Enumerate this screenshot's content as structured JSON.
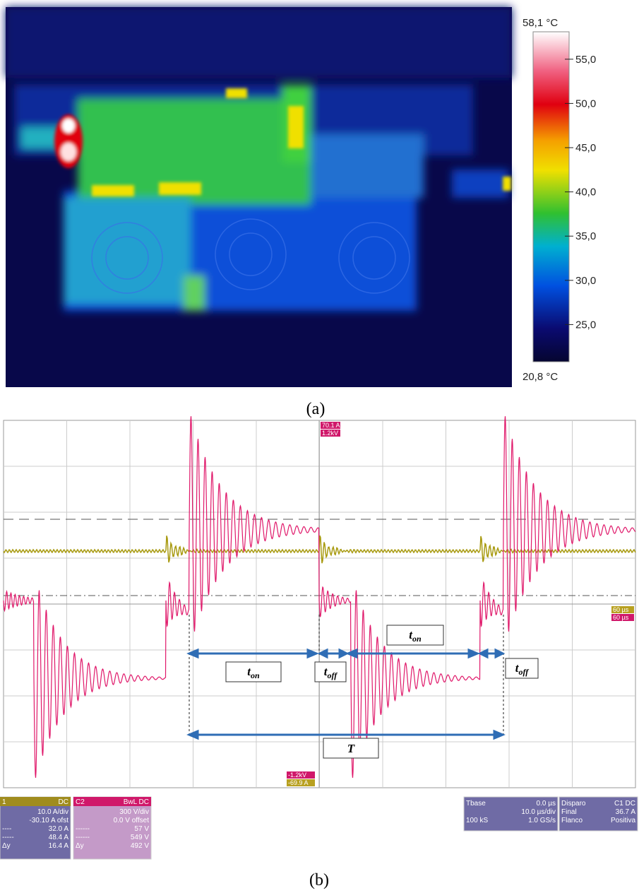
{
  "panel_a": {
    "caption": "(a)",
    "colorbar": {
      "max": {
        "value": 58.1,
        "label": "58,1 °C"
      },
      "min": {
        "value": 20.8,
        "label": "20,8 °C"
      },
      "ticks": [
        {
          "value": 55,
          "label": "55,0"
        },
        {
          "value": 50,
          "label": "50,0"
        },
        {
          "value": 45,
          "label": "45,0"
        },
        {
          "value": 40,
          "label": "40,0"
        },
        {
          "value": 35,
          "label": "35,0"
        },
        {
          "value": 30,
          "label": "30,0"
        },
        {
          "value": 25,
          "label": "25,0"
        }
      ]
    }
  },
  "panel_b": {
    "caption": "(b)",
    "annotations": {
      "ton_1": {
        "base": "t",
        "sub": "on"
      },
      "toff_1": {
        "base": "t",
        "sub": "off"
      },
      "ton_2": {
        "base": "t",
        "sub": "on"
      },
      "toff_2": {
        "base": "t",
        "sub": "off"
      },
      "period": "T"
    },
    "markers": {
      "top_current": "70.1 A",
      "top_voltage": "1.2kV",
      "bottom_voltage": "-1.2kV",
      "bottom_current": "-69.9 A",
      "right_1": "60 µs",
      "right_2": "60 µs"
    },
    "c1_box": {
      "header": "1",
      "coupling": "DC",
      "rows": [
        [
          "",
          "10.0 A/div"
        ],
        [
          "",
          "-30.10 A ofst"
        ],
        [
          "----",
          "32.0 A"
        ],
        [
          "-----",
          "48.4 A"
        ],
        [
          "Δy",
          "16.4 A"
        ]
      ]
    },
    "c2_box": {
      "header": "C2",
      "coupling": "BwL DC",
      "rows": [
        [
          "",
          "300 V/div"
        ],
        [
          "",
          "0.0 V offset"
        ],
        [
          "------",
          "57 V"
        ],
        [
          "------",
          "549 V"
        ],
        [
          "Δy",
          "492 V"
        ]
      ]
    },
    "tbase_box": {
      "rows": [
        [
          "Tbase",
          "0.0 µs"
        ],
        [
          "",
          "10.0 µs/div"
        ],
        [
          "100 kS",
          "1.0 GS/s"
        ]
      ]
    },
    "trigger_box": {
      "rows": [
        [
          "Disparo",
          "C1 DC"
        ],
        [
          "Final",
          "36.7 A"
        ],
        [
          "Flanco",
          "Positiva"
        ]
      ]
    }
  }
}
